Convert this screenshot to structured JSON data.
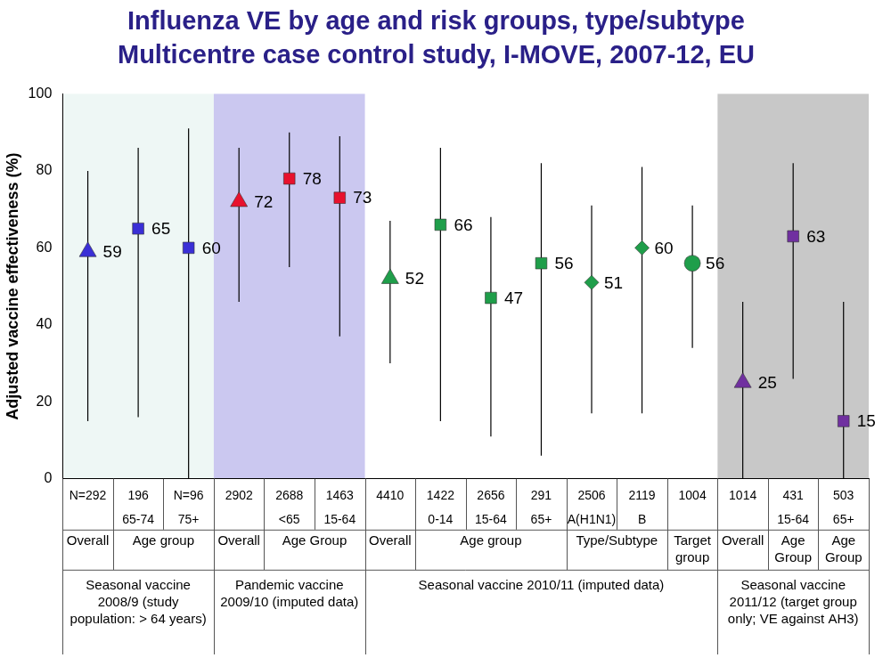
{
  "chart_data": {
    "type": "scatter",
    "title": [
      "Influenza VE by age and risk groups, type/subtype",
      "Multicentre case control study, I-MOVE, 2007-12, EU"
    ],
    "y_label": "Adjusted vaccine effectiveness (%)",
    "categories": [
      "N=292",
      "196",
      "N=96",
      "2902",
      "2688",
      "1463",
      "4410",
      "1422",
      "2656",
      "291",
      "2506",
      "2119",
      "1004",
      "1014",
      "431",
      "503"
    ],
    "subcategories": [
      null,
      "65-74",
      "75+",
      null,
      "<65",
      "15-64",
      null,
      "0-14",
      "15-64",
      "65+",
      "A(H1N1)",
      "B",
      null,
      null,
      "15-64",
      "65+"
    ],
    "groups": [
      {
        "label": "Overall",
        "span": 1
      },
      {
        "label": "Age group",
        "span": 2
      },
      {
        "label": "Overall",
        "span": 1
      },
      {
        "label": "Age Group",
        "span": 2
      },
      {
        "label": "Overall",
        "span": 1
      },
      {
        "label": "Age group",
        "span": 3
      },
      {
        "label": "Type/Subtype",
        "span": 2
      },
      {
        "label": "Target group",
        "span": 1
      },
      {
        "label": "Overall",
        "span": 1
      },
      {
        "label": "Age Group",
        "span": 1
      },
      {
        "label": "Age Group",
        "span": 1
      }
    ],
    "seasons": [
      {
        "label": "Seasonal vaccine 2008/9 (study population: > 64 years)",
        "span": 3,
        "color": "#eef7f5"
      },
      {
        "label": "Pandemic vaccine 2009/10 (imputed data)",
        "span": 3,
        "color": "#cbc8f0"
      },
      {
        "label": "Seasonal vaccine 2010/11 (imputed data)",
        "span": 7
      },
      {
        "label": "Seasonal vaccine 2011/12 (target group only; VE against AH3)",
        "span": 3,
        "color": "#c8c8c8"
      }
    ],
    "series": [
      {
        "color": "#3a2fd6",
        "marker": "triangle",
        "values": [
          59,
          null,
          null,
          null,
          null,
          null,
          null,
          null,
          null,
          null,
          null,
          null,
          null,
          null,
          null,
          null
        ],
        "ci_lower": [
          15,
          null,
          null,
          null,
          null,
          null,
          null,
          null,
          null,
          null,
          null,
          null,
          null,
          null,
          null,
          null
        ],
        "ci_upper": [
          80,
          null,
          null,
          null,
          null,
          null,
          null,
          null,
          null,
          null,
          null,
          null,
          null,
          null,
          null,
          null
        ]
      },
      {
        "color": "#3a2fd6",
        "marker": "square",
        "values": [
          null,
          65,
          60,
          null,
          null,
          null,
          null,
          null,
          null,
          null,
          null,
          null,
          null,
          null,
          null,
          null
        ],
        "ci_lower": [
          null,
          16,
          0,
          null,
          null,
          null,
          null,
          null,
          null,
          null,
          null,
          null,
          null,
          null,
          null,
          null
        ],
        "ci_upper": [
          null,
          86,
          91,
          null,
          null,
          null,
          null,
          null,
          null,
          null,
          null,
          null,
          null,
          null,
          null,
          null
        ]
      },
      {
        "color": "#e8112d",
        "marker": "triangle",
        "values": [
          null,
          null,
          null,
          72,
          null,
          null,
          null,
          null,
          null,
          null,
          null,
          null,
          null,
          null,
          null,
          null
        ],
        "ci_lower": [
          null,
          null,
          null,
          46,
          null,
          null,
          null,
          null,
          null,
          null,
          null,
          null,
          null,
          null,
          null,
          null
        ],
        "ci_upper": [
          null,
          null,
          null,
          86,
          null,
          null,
          null,
          null,
          null,
          null,
          null,
          null,
          null,
          null,
          null,
          null
        ]
      },
      {
        "color": "#e8112d",
        "marker": "square",
        "values": [
          null,
          null,
          null,
          null,
          78,
          73,
          null,
          null,
          null,
          null,
          null,
          null,
          null,
          null,
          null,
          null
        ],
        "ci_lower": [
          null,
          null,
          null,
          null,
          55,
          37,
          null,
          null,
          null,
          null,
          null,
          null,
          null,
          null,
          null,
          null
        ],
        "ci_upper": [
          null,
          null,
          null,
          null,
          90,
          89,
          null,
          null,
          null,
          null,
          null,
          null,
          null,
          null,
          null,
          null
        ]
      },
      {
        "color": "#1f9e4a",
        "marker": "triangle",
        "values": [
          null,
          null,
          null,
          null,
          null,
          null,
          52,
          null,
          null,
          null,
          null,
          null,
          null,
          null,
          null,
          null
        ],
        "ci_lower": [
          null,
          null,
          null,
          null,
          null,
          null,
          30,
          null,
          null,
          null,
          null,
          null,
          null,
          null,
          null,
          null
        ],
        "ci_upper": [
          null,
          null,
          null,
          null,
          null,
          null,
          67,
          null,
          null,
          null,
          null,
          null,
          null,
          null,
          null,
          null
        ]
      },
      {
        "color": "#1f9e4a",
        "marker": "square",
        "values": [
          null,
          null,
          null,
          null,
          null,
          null,
          null,
          66,
          47,
          56,
          null,
          null,
          null,
          null,
          null,
          null
        ],
        "ci_lower": [
          null,
          null,
          null,
          null,
          null,
          null,
          null,
          15,
          11,
          6,
          null,
          null,
          null,
          null,
          null,
          null
        ],
        "ci_upper": [
          null,
          null,
          null,
          null,
          null,
          null,
          null,
          86,
          68,
          82,
          null,
          null,
          null,
          null,
          null,
          null
        ]
      },
      {
        "color": "#1f9e4a",
        "marker": "diamond",
        "values": [
          null,
          null,
          null,
          null,
          null,
          null,
          null,
          null,
          null,
          null,
          51,
          60,
          null,
          null,
          null,
          null
        ],
        "ci_lower": [
          null,
          null,
          null,
          null,
          null,
          null,
          null,
          null,
          null,
          null,
          17,
          17,
          null,
          null,
          null,
          null
        ],
        "ci_upper": [
          null,
          null,
          null,
          null,
          null,
          null,
          null,
          null,
          null,
          null,
          71,
          81,
          null,
          null,
          null,
          null
        ]
      },
      {
        "color": "#1f9e4a",
        "marker": "circle",
        "values": [
          null,
          null,
          null,
          null,
          null,
          null,
          null,
          null,
          null,
          null,
          null,
          null,
          56,
          null,
          null,
          null
        ],
        "ci_lower": [
          null,
          null,
          null,
          null,
          null,
          null,
          null,
          null,
          null,
          null,
          null,
          null,
          34,
          null,
          null,
          null
        ],
        "ci_upper": [
          null,
          null,
          null,
          null,
          null,
          null,
          null,
          null,
          null,
          null,
          null,
          null,
          71,
          null,
          null,
          null
        ]
      },
      {
        "color": "#7030a0",
        "marker": "triangle",
        "values": [
          null,
          null,
          null,
          null,
          null,
          null,
          null,
          null,
          null,
          null,
          null,
          null,
          null,
          25,
          null,
          null
        ],
        "ci_lower": [
          null,
          null,
          null,
          null,
          null,
          null,
          null,
          null,
          null,
          null,
          null,
          null,
          null,
          0,
          null,
          null
        ],
        "ci_upper": [
          null,
          null,
          null,
          null,
          null,
          null,
          null,
          null,
          null,
          null,
          null,
          null,
          null,
          46,
          null,
          null
        ]
      },
      {
        "color": "#7030a0",
        "marker": "square",
        "values": [
          null,
          null,
          null,
          null,
          null,
          null,
          null,
          null,
          null,
          null,
          null,
          null,
          null,
          null,
          63,
          15
        ],
        "ci_lower": [
          null,
          null,
          null,
          null,
          null,
          null,
          null,
          null,
          null,
          null,
          null,
          null,
          null,
          null,
          26,
          0
        ],
        "ci_upper": [
          null,
          null,
          null,
          null,
          null,
          null,
          null,
          null,
          null,
          null,
          null,
          null,
          null,
          null,
          82,
          46
        ]
      }
    ],
    "ylim": [
      0,
      100
    ],
    "yticks": [
      0,
      20,
      40,
      60,
      80,
      100
    ],
    "grid": false,
    "data_labels": true
  }
}
